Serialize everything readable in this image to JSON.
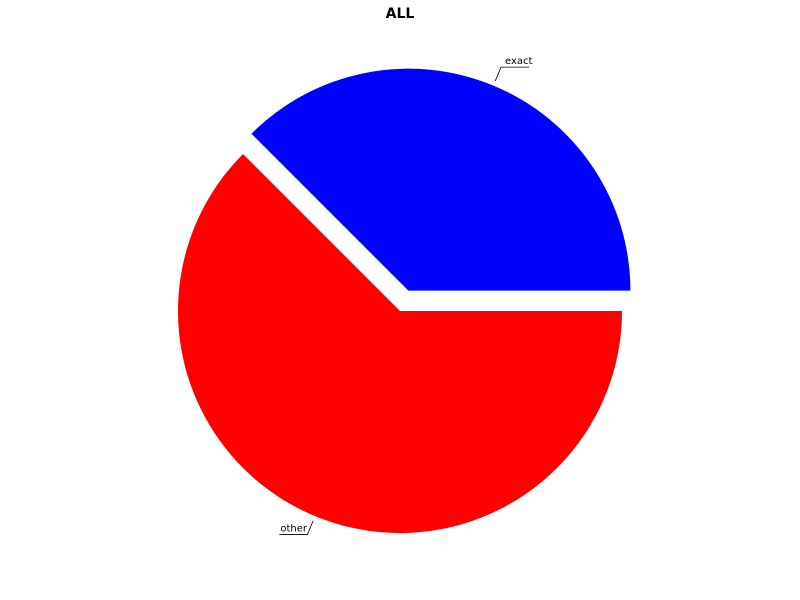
{
  "chart_data": {
    "type": "pie",
    "title": "ALL",
    "slices": [
      {
        "label": "exact",
        "value": 37.5,
        "color": "#0000ff",
        "exploded": true
      },
      {
        "label": "other",
        "value": 62.5,
        "color": "#ff0000",
        "exploded": false
      }
    ]
  }
}
